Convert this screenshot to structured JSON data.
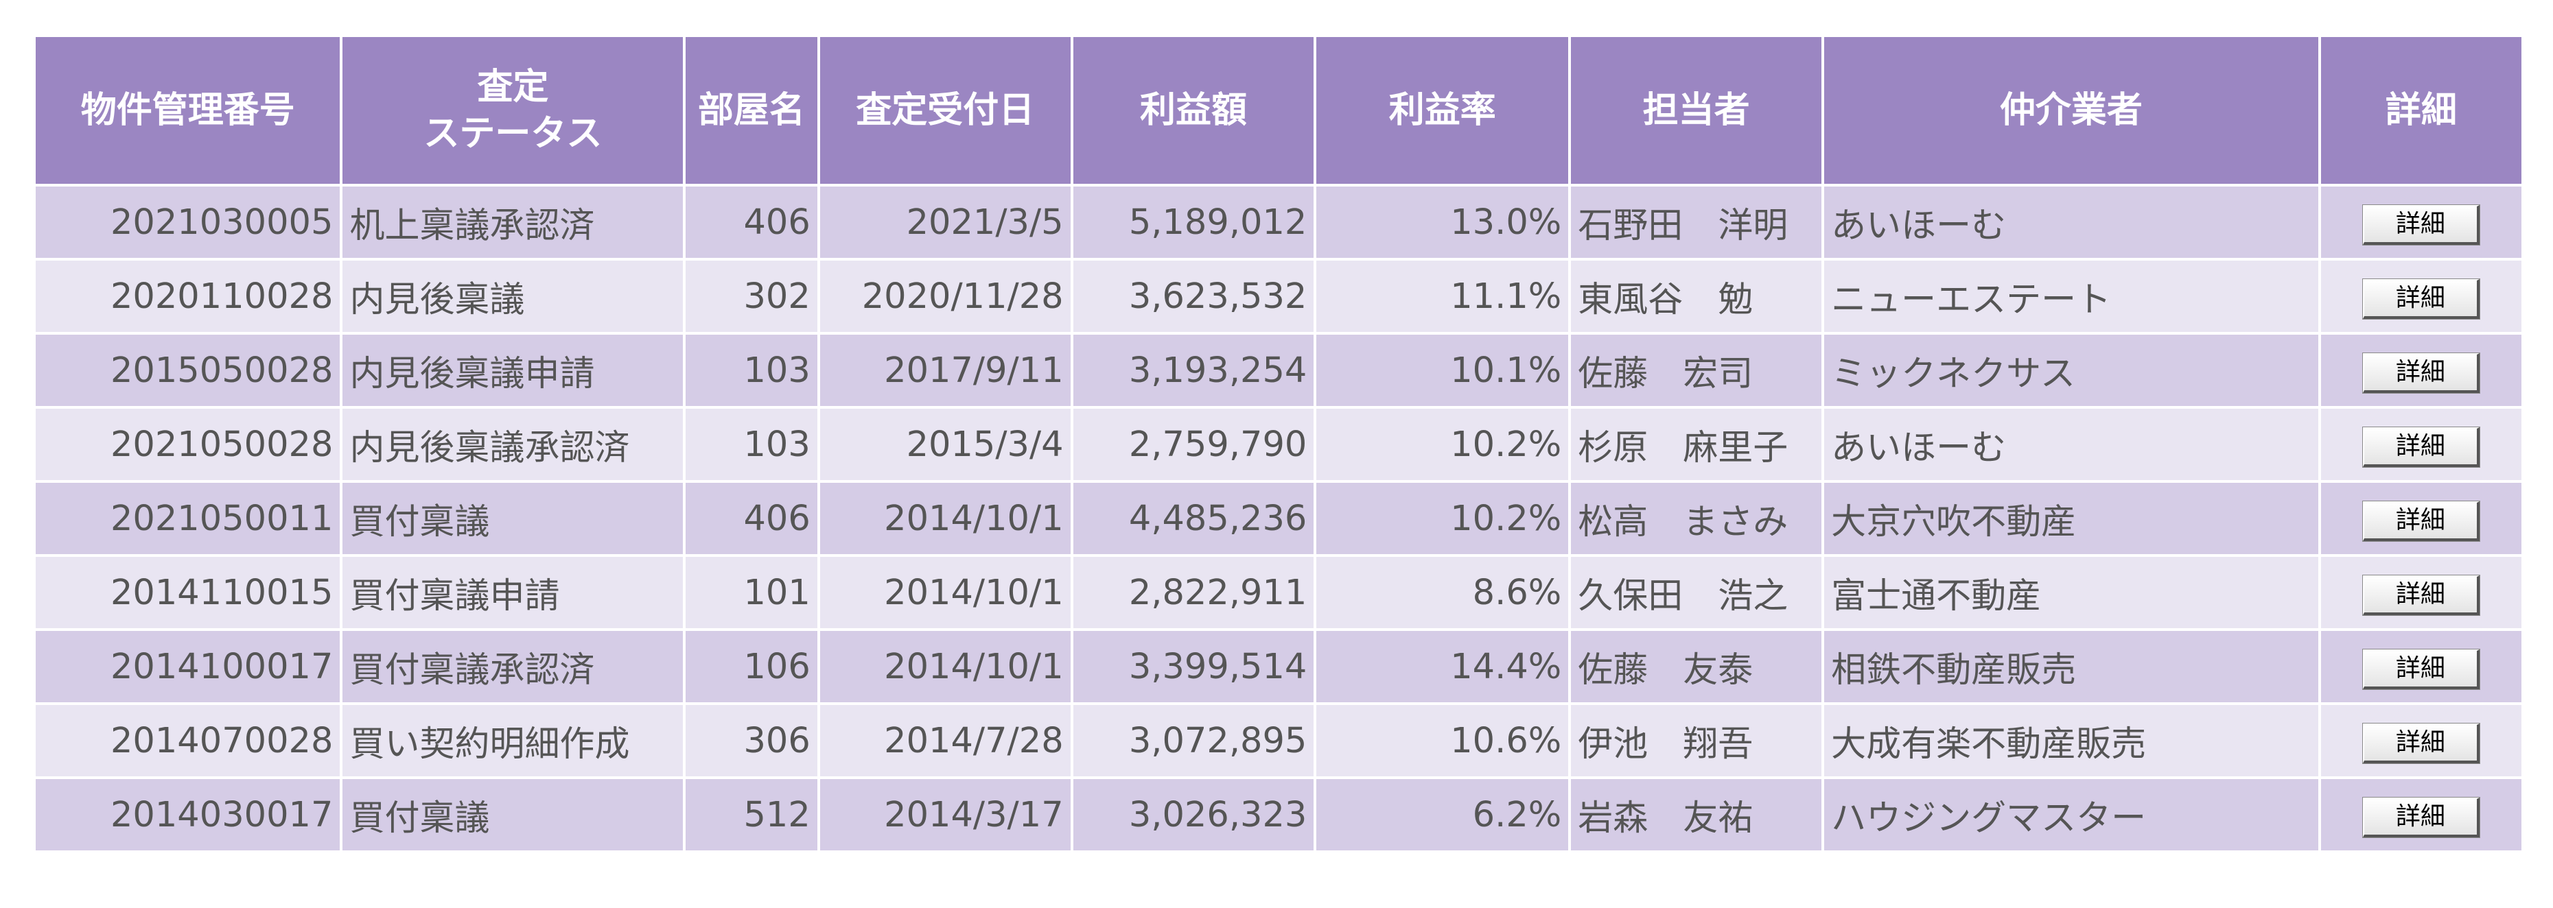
{
  "table": {
    "headers": [
      {
        "line1": "物件管理番号",
        "line2": ""
      },
      {
        "line1": "査定",
        "line2": "ステータス"
      },
      {
        "line1": "部屋名",
        "line2": ""
      },
      {
        "line1": "査定受付日",
        "line2": ""
      },
      {
        "line1": "利益額",
        "line2": ""
      },
      {
        "line1": "利益率",
        "line2": ""
      },
      {
        "line1": "担当者",
        "line2": ""
      },
      {
        "line1": "仲介業者",
        "line2": ""
      },
      {
        "line1": "詳細",
        "line2": ""
      }
    ],
    "rows": [
      {
        "id": "2021030005",
        "status": "机上稟議承認済",
        "room": "406",
        "date": "2021/3/5",
        "profit": "5,189,012",
        "rate": "13.0%",
        "staff": "石野田　洋明",
        "broker": "あいほーむ",
        "button": "詳細"
      },
      {
        "id": "2020110028",
        "status": "内見後稟議",
        "room": "302",
        "date": "2020/11/28",
        "profit": "3,623,532",
        "rate": "11.1%",
        "staff": "東風谷　勉",
        "broker": "ニューエステート",
        "button": "詳細"
      },
      {
        "id": "2015050028",
        "status": "内見後稟議申請",
        "room": "103",
        "date": "2017/9/11",
        "profit": "3,193,254",
        "rate": "10.1%",
        "staff": "佐藤　宏司",
        "broker": "ミックネクサス",
        "button": "詳細"
      },
      {
        "id": "2021050028",
        "status": "内見後稟議承認済",
        "room": "103",
        "date": "2015/3/4",
        "profit": "2,759,790",
        "rate": "10.2%",
        "staff": "杉原　麻里子",
        "broker": "あいほーむ",
        "button": "詳細"
      },
      {
        "id": "2021050011",
        "status": "買付稟議",
        "room": "406",
        "date": "2014/10/1",
        "profit": "4,485,236",
        "rate": "10.2%",
        "staff": "松高　まさみ",
        "broker": "大京穴吹不動産",
        "button": "詳細"
      },
      {
        "id": "2014110015",
        "status": "買付稟議申請",
        "room": "101",
        "date": "2014/10/1",
        "profit": "2,822,911",
        "rate": "8.6%",
        "staff": "久保田　浩之",
        "broker": "富士通不動産",
        "button": "詳細"
      },
      {
        "id": "2014100017",
        "status": "買付稟議承認済",
        "room": "106",
        "date": "2014/10/1",
        "profit": "3,399,514",
        "rate": "14.4%",
        "staff": "佐藤　友泰",
        "broker": "相鉄不動産販売",
        "button": "詳細"
      },
      {
        "id": "2014070028",
        "status": "買い契約明細作成",
        "room": "306",
        "date": "2014/7/28",
        "profit": "3,072,895",
        "rate": "10.6%",
        "staff": "伊池　翔吾",
        "broker": "大成有楽不動産販売",
        "button": "詳細"
      },
      {
        "id": "2014030017",
        "status": "買付稟議",
        "room": "512",
        "date": "2014/3/17",
        "profit": "3,026,323",
        "rate": "6.2%",
        "staff": "岩森　友祐",
        "broker": "ハウジングマスター",
        "button": "詳細"
      }
    ]
  },
  "colors": {
    "header_bg": "#9b86c2",
    "header_text": "#ffffff",
    "row_odd": "#d5cce6",
    "row_even": "#e9e5f2",
    "cell_text": "#555555"
  }
}
